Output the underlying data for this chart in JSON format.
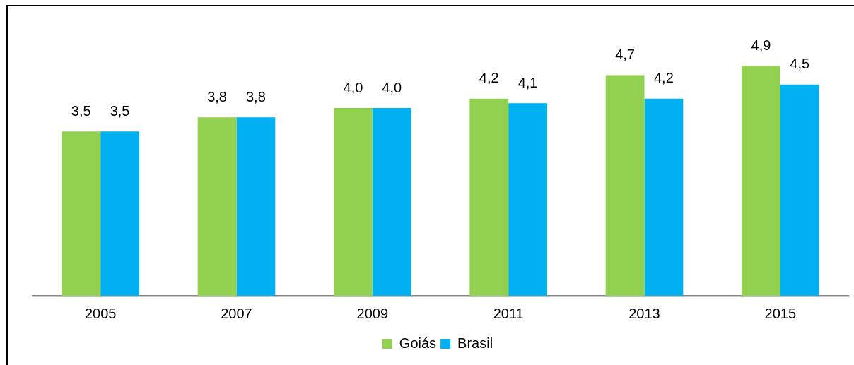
{
  "chart_data": {
    "type": "bar",
    "categories": [
      "2005",
      "2007",
      "2009",
      "2011",
      "2013",
      "2015"
    ],
    "series": [
      {
        "name": "Goiás",
        "color": "#92d050",
        "values": [
          3.5,
          3.8,
          4.0,
          4.2,
          4.7,
          4.9
        ],
        "value_labels": [
          "3,5",
          "3,8",
          "4,0",
          "4,2",
          "4,7",
          "4,9"
        ]
      },
      {
        "name": "Brasil",
        "color": "#00b0f0",
        "values": [
          3.5,
          3.8,
          4.0,
          4.1,
          4.2,
          4.5
        ],
        "value_labels": [
          "3,5",
          "3,8",
          "4,0",
          "4,1",
          "4,2",
          "4,5"
        ]
      }
    ],
    "tick_labels": "x",
    "grid": false,
    "legend": "bottom"
  }
}
